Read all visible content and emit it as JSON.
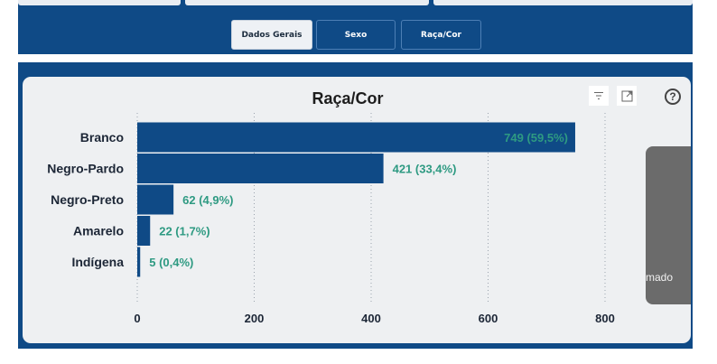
{
  "tabs": [
    {
      "label": "Dados Gerais",
      "active": true
    },
    {
      "label": "Sexo",
      "active": false
    },
    {
      "label": "Raça/Cor",
      "active": false
    }
  ],
  "overlay_text": "mado",
  "colors": {
    "bar": "#0f4a86",
    "value_label": "#2e9a82",
    "header": "#0f4a86"
  },
  "icons": [
    "filter-icon",
    "focus-mode-icon",
    "help-icon"
  ],
  "chart_data": {
    "type": "bar",
    "orientation": "horizontal",
    "title": "Raça/Cor",
    "categories": [
      "Branco",
      "Negro-Pardo",
      "Negro-Preto",
      "Amarelo",
      "Indígena"
    ],
    "values": [
      749,
      421,
      62,
      22,
      5
    ],
    "data_labels": [
      "749 (59,5%)",
      "421 (33,4%)",
      "62 (4,9%)",
      "22 (1,7%)",
      "5 (0,4%)"
    ],
    "x_ticks": [
      "0",
      "200",
      "400",
      "600",
      "800"
    ],
    "xlim": [
      0,
      800
    ],
    "grid": "vertical dotted"
  }
}
